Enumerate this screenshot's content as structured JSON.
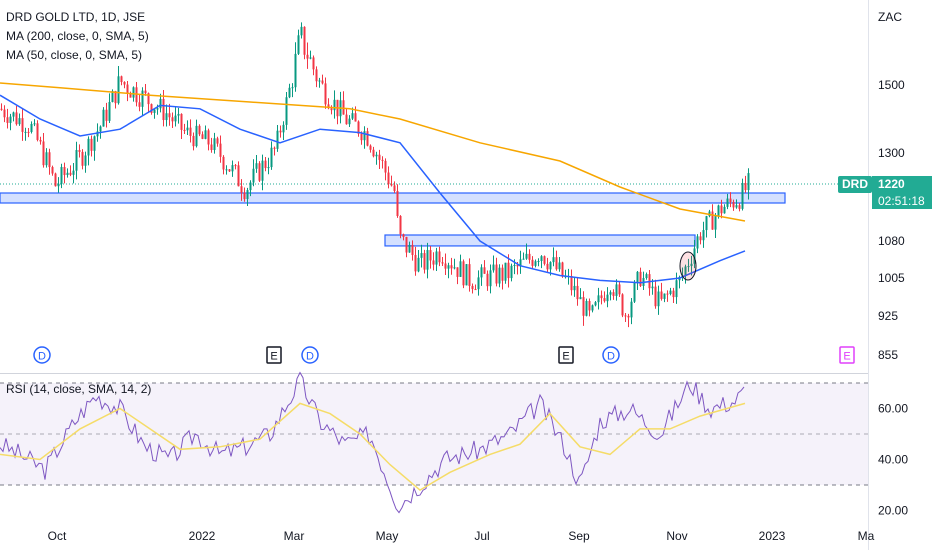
{
  "legend": {
    "title": "DRD GOLD LTD, 1D, JSE",
    "ma200": "MA (200, close, 0, SMA, 5)",
    "ma50": "MA (50, close, 0, SMA, 5)",
    "rsi": "RSI (14, close, SMA, 14, 2)"
  },
  "currency": "ZAC",
  "price_tag": {
    "symbol": "DRD",
    "price": "1220",
    "countdown": "02:51:18"
  },
  "colors": {
    "up": "#089981",
    "down": "#f23645",
    "ma200": "#f7a600",
    "ma50": "#2962ff",
    "rsi": "#7e57c2",
    "rsi_ma": "#f5dc68",
    "tag": "#22ab94",
    "zone": "#2962ff"
  },
  "chart_data": [
    {
      "type": "candlestick",
      "title": "DRD GOLD LTD, 1D, JSE",
      "x_ticks": [
        "Oct",
        "2022",
        "Mar",
        "May",
        "Jul",
        "Sep",
        "Nov",
        "2023",
        "Ma"
      ],
      "y_ticks": [
        1500,
        1300,
        1080,
        1005,
        925,
        855
      ],
      "current_price": 1220,
      "events": [
        "D",
        "E",
        "D",
        "E",
        "D",
        "E"
      ],
      "zones": [
        {
          "low": 1175,
          "high": 1200
        },
        {
          "low": 1070,
          "high": 1095
        }
      ],
      "series": [
        {
          "name": "MA (200, close, 0, SMA, 5)",
          "points": [
            [
              0,
              1505
            ],
            [
              60,
              1492
            ],
            [
              150,
              1470
            ],
            [
              250,
              1450
            ],
            [
              350,
              1430
            ],
            [
              400,
              1400
            ],
            [
              480,
              1330
            ],
            [
              560,
              1280
            ],
            [
              620,
              1215
            ],
            [
              680,
              1160
            ],
            [
              745,
              1130
            ]
          ]
        },
        {
          "name": "MA (50, close, 0, SMA, 5)",
          "points": [
            [
              0,
              1470
            ],
            [
              40,
              1400
            ],
            [
              80,
              1350
            ],
            [
              120,
              1370
            ],
            [
              160,
              1440
            ],
            [
              200,
              1430
            ],
            [
              240,
              1370
            ],
            [
              280,
              1330
            ],
            [
              320,
              1370
            ],
            [
              360,
              1360
            ],
            [
              400,
              1330
            ],
            [
              440,
              1200
            ],
            [
              480,
              1080
            ],
            [
              520,
              1030
            ],
            [
              560,
              1010
            ],
            [
              600,
              1000
            ],
            [
              640,
              995
            ],
            [
              680,
              1005
            ],
            [
              720,
              1040
            ],
            [
              745,
              1060
            ]
          ]
        }
      ],
      "price_path": [
        [
          0,
          1430
        ],
        [
          30,
          1380
        ],
        [
          55,
          1220
        ],
        [
          80,
          1290
        ],
        [
          100,
          1380
        ],
        [
          120,
          1510
        ],
        [
          145,
          1460
        ],
        [
          165,
          1420
        ],
        [
          185,
          1360
        ],
        [
          210,
          1330
        ],
        [
          245,
          1210
        ],
        [
          275,
          1310
        ],
        [
          300,
          1620
        ],
        [
          320,
          1500
        ],
        [
          345,
          1400
        ],
        [
          365,
          1360
        ],
        [
          395,
          1200
        ],
        [
          398,
          1090
        ],
        [
          420,
          1030
        ],
        [
          440,
          1060
        ],
        [
          470,
          1000
        ],
        [
          510,
          1015
        ],
        [
          540,
          1060
        ],
        [
          570,
          990
        ],
        [
          590,
          920
        ],
        [
          610,
          1000
        ],
        [
          625,
          930
        ],
        [
          640,
          1010
        ],
        [
          660,
          950
        ],
        [
          680,
          1000
        ],
        [
          700,
          1100
        ],
        [
          720,
          1160
        ],
        [
          740,
          1190
        ],
        [
          748,
          1220
        ]
      ]
    },
    {
      "type": "line",
      "title": "RSI (14, close, SMA, 14, 2)",
      "y_ticks": [
        60.0,
        40.0,
        20.0
      ],
      "ylim": [
        18,
        72
      ],
      "bands": [
        30,
        50,
        70
      ],
      "series": [
        {
          "name": "RSI",
          "points": [
            [
              0,
              46
            ],
            [
              20,
              42
            ],
            [
              45,
              36
            ],
            [
              75,
              55
            ],
            [
              95,
              65
            ],
            [
              120,
              60
            ],
            [
              145,
              45
            ],
            [
              170,
              40
            ],
            [
              195,
              50
            ],
            [
              220,
              42
            ],
            [
              245,
              45
            ],
            [
              270,
              50
            ],
            [
              300,
              71
            ],
            [
              320,
              55
            ],
            [
              345,
              46
            ],
            [
              370,
              50
            ],
            [
              385,
              35
            ],
            [
              398,
              22
            ],
            [
              420,
              30
            ],
            [
              445,
              40
            ],
            [
              480,
              44
            ],
            [
              510,
              50
            ],
            [
              540,
              62
            ],
            [
              565,
              45
            ],
            [
              580,
              30
            ],
            [
              600,
              55
            ],
            [
              630,
              60
            ],
            [
              660,
              50
            ],
            [
              690,
              70
            ],
            [
              710,
              60
            ],
            [
              735,
              63
            ],
            [
              745,
              67
            ]
          ]
        },
        {
          "name": "RSI MA",
          "points": [
            [
              0,
              42
            ],
            [
              40,
              40
            ],
            [
              80,
              52
            ],
            [
              120,
              60
            ],
            [
              150,
              52
            ],
            [
              180,
              44
            ],
            [
              220,
              45
            ],
            [
              260,
              48
            ],
            [
              300,
              62
            ],
            [
              330,
              58
            ],
            [
              360,
              50
            ],
            [
              390,
              38
            ],
            [
              420,
              28
            ],
            [
              450,
              35
            ],
            [
              490,
              42
            ],
            [
              520,
              46
            ],
            [
              550,
              58
            ],
            [
              580,
              45
            ],
            [
              610,
              42
            ],
            [
              640,
              52
            ],
            [
              670,
              52
            ],
            [
              700,
              57
            ],
            [
              745,
              62
            ]
          ]
        }
      ]
    }
  ]
}
